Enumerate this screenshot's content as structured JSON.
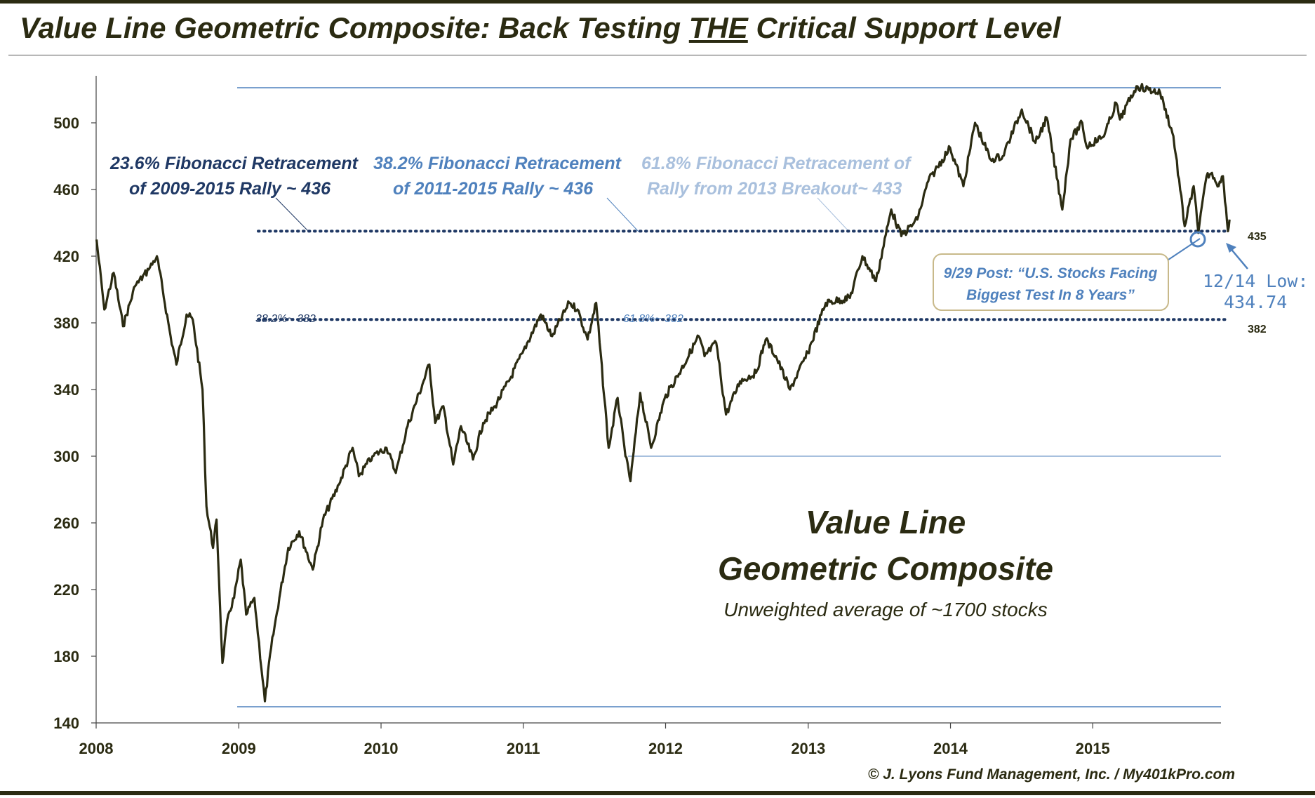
{
  "title_prefix": "Value Line Geometric Composite: Back Testing ",
  "title_emph": "THE",
  "title_suffix": " Critical Support Level",
  "colors": {
    "line": "#2b2b12",
    "fib_dark": "#1f3864",
    "fib_mid": "#4f81bd",
    "fib_light": "#a9c0dd",
    "accent": "#4f81bd"
  },
  "annotations": {
    "fib1_line1": "23.6% Fibonacci Retracement",
    "fib1_line2": "of 2009-2015 Rally ~ 436",
    "fib2_line1": "38.2% Fibonacci Retracement",
    "fib2_line2": "of 2011-2015 Rally ~ 436",
    "fib3_line1": "61.8% Fibonacci Retracement of",
    "fib3_line2": "Rally from 2013 Breakout~ 433",
    "fib382_left": "38.2%~ 382",
    "fib382_mid": "61.8%~ 382",
    "level_435": "435",
    "level_382": "382",
    "post_line1": "9/29 Post: “U.S. Stocks Facing",
    "post_line2": "Biggest Test In 8 Years”",
    "low_line1": "12/14 Low:",
    "low_line2": "434.74"
  },
  "center_title_line1": "Value Line",
  "center_title_line2": "Geometric Composite",
  "center_subtitle": "Unweighted average of ~1700 stocks",
  "credit": "© J. Lyons Fund Management, Inc. / My401kPro.com",
  "chart_data": {
    "type": "line",
    "title": "Value Line Geometric Composite",
    "xlabel": "",
    "ylabel": "",
    "x_ticks": [
      "2008",
      "2009",
      "2010",
      "2011",
      "2012",
      "2013",
      "2014",
      "2015"
    ],
    "y_ticks": [
      140,
      180,
      220,
      260,
      300,
      340,
      380,
      420,
      460,
      500
    ],
    "xlim": [
      "2008-01-01",
      "2015-12-31"
    ],
    "ylim": [
      140,
      530
    ],
    "grid": false,
    "series": [
      {
        "points": [
          [
            "2008-01-02",
            430
          ],
          [
            "2008-01-22",
            388
          ],
          [
            "2008-02-15",
            410
          ],
          [
            "2008-03-10",
            378
          ],
          [
            "2008-04-10",
            402
          ],
          [
            "2008-05-15",
            412
          ],
          [
            "2008-06-05",
            420
          ],
          [
            "2008-07-10",
            372
          ],
          [
            "2008-07-25",
            355
          ],
          [
            "2008-08-20",
            385
          ],
          [
            "2008-09-05",
            382
          ],
          [
            "2008-09-30",
            340
          ],
          [
            "2008-10-10",
            270
          ],
          [
            "2008-10-27",
            245
          ],
          [
            "2008-11-05",
            262
          ],
          [
            "2008-11-20",
            176
          ],
          [
            "2008-12-05",
            205
          ],
          [
            "2008-12-20",
            215
          ],
          [
            "2009-01-06",
            238
          ],
          [
            "2009-01-20",
            205
          ],
          [
            "2009-02-10",
            215
          ],
          [
            "2009-03-09",
            153
          ],
          [
            "2009-03-25",
            185
          ],
          [
            "2009-04-15",
            215
          ],
          [
            "2009-05-08",
            245
          ],
          [
            "2009-06-05",
            255
          ],
          [
            "2009-07-10",
            232
          ],
          [
            "2009-08-05",
            262
          ],
          [
            "2009-09-15",
            283
          ],
          [
            "2009-10-20",
            305
          ],
          [
            "2009-11-05",
            288
          ],
          [
            "2009-12-10",
            300
          ],
          [
            "2010-01-15",
            305
          ],
          [
            "2010-02-08",
            290
          ],
          [
            "2010-03-10",
            318
          ],
          [
            "2010-04-20",
            345
          ],
          [
            "2010-05-05",
            355
          ],
          [
            "2010-05-20",
            320
          ],
          [
            "2010-06-10",
            330
          ],
          [
            "2010-07-05",
            295
          ],
          [
            "2010-07-25",
            318
          ],
          [
            "2010-08-25",
            298
          ],
          [
            "2010-09-20",
            320
          ],
          [
            "2010-10-20",
            330
          ],
          [
            "2010-11-25",
            345
          ],
          [
            "2010-12-30",
            362
          ],
          [
            "2011-02-15",
            385
          ],
          [
            "2011-03-16",
            372
          ],
          [
            "2011-04-29",
            392
          ],
          [
            "2011-05-20",
            388
          ],
          [
            "2011-06-15",
            370
          ],
          [
            "2011-07-07",
            392
          ],
          [
            "2011-08-08",
            305
          ],
          [
            "2011-08-31",
            335
          ],
          [
            "2011-09-20",
            300
          ],
          [
            "2011-10-03",
            285
          ],
          [
            "2011-10-28",
            338
          ],
          [
            "2011-11-25",
            305
          ],
          [
            "2011-12-30",
            335
          ],
          [
            "2012-02-10",
            352
          ],
          [
            "2012-03-26",
            372
          ],
          [
            "2012-04-10",
            360
          ],
          [
            "2012-05-10",
            368
          ],
          [
            "2012-06-04",
            325
          ],
          [
            "2012-07-10",
            345
          ],
          [
            "2012-08-20",
            350
          ],
          [
            "2012-09-14",
            370
          ],
          [
            "2012-10-10",
            360
          ],
          [
            "2012-11-15",
            340
          ],
          [
            "2012-12-31",
            362
          ],
          [
            "2013-02-15",
            392
          ],
          [
            "2013-04-18",
            395
          ],
          [
            "2013-05-20",
            420
          ],
          [
            "2013-06-24",
            405
          ],
          [
            "2013-08-02",
            448
          ],
          [
            "2013-08-28",
            432
          ],
          [
            "2013-10-08",
            442
          ],
          [
            "2013-11-05",
            465
          ],
          [
            "2013-12-31",
            485
          ],
          [
            "2014-02-03",
            462
          ],
          [
            "2014-03-05",
            500
          ],
          [
            "2014-04-14",
            478
          ],
          [
            "2014-05-15",
            480
          ],
          [
            "2014-07-03",
            508
          ],
          [
            "2014-08-07",
            488
          ],
          [
            "2014-09-05",
            503
          ],
          [
            "2014-10-15",
            448
          ],
          [
            "2014-11-05",
            490
          ],
          [
            "2014-12-05",
            500
          ],
          [
            "2014-12-16",
            486
          ],
          [
            "2015-01-30",
            492
          ],
          [
            "2015-03-02",
            512
          ],
          [
            "2015-03-12",
            502
          ],
          [
            "2015-04-23",
            522
          ],
          [
            "2015-06-23",
            518
          ],
          [
            "2015-07-27",
            492
          ],
          [
            "2015-08-25",
            438
          ],
          [
            "2015-09-17",
            462
          ],
          [
            "2015-09-29",
            434
          ],
          [
            "2015-10-20",
            468
          ],
          [
            "2015-11-03",
            470
          ],
          [
            "2015-11-20",
            462
          ],
          [
            "2015-12-01",
            468
          ],
          [
            "2015-12-14",
            435
          ],
          [
            "2015-12-18",
            442
          ]
        ]
      }
    ],
    "reference_lines": [
      {
        "y": 435,
        "label": "435"
      },
      {
        "y": 382,
        "label": "382"
      }
    ]
  }
}
